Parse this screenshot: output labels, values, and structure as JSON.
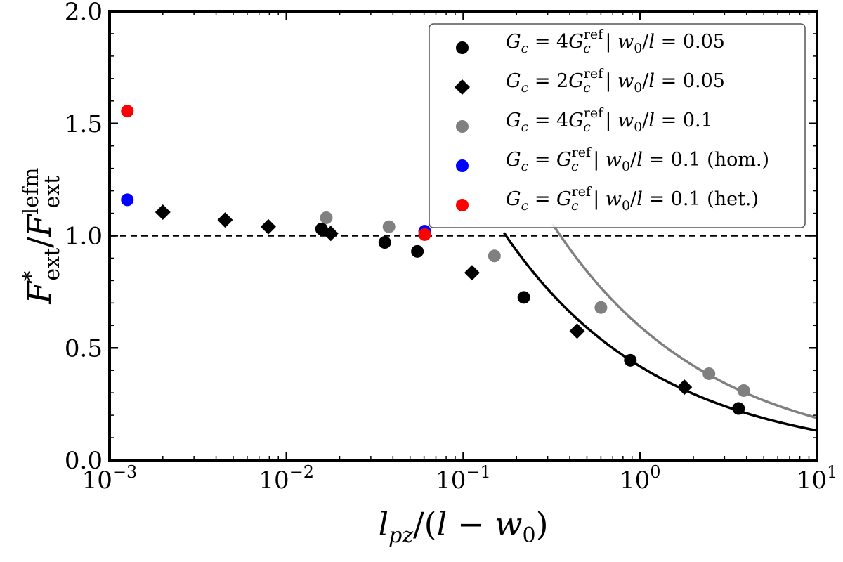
{
  "chart_data": {
    "type": "scatter",
    "x_scale": "log",
    "xlim": [
      0.001,
      10
    ],
    "ylim": [
      0.0,
      2.0
    ],
    "x_ticks": [
      {
        "value": 0.001,
        "base": "10",
        "exp": "−3"
      },
      {
        "value": 0.01,
        "base": "10",
        "exp": "−2"
      },
      {
        "value": 0.1,
        "base": "10",
        "exp": "−1"
      },
      {
        "value": 1,
        "base": "10",
        "exp": "0"
      },
      {
        "value": 10,
        "base": "10",
        "exp": "1"
      }
    ],
    "y_ticks": [
      {
        "value": 0.0,
        "label": "0.0"
      },
      {
        "value": 0.5,
        "label": "0.5"
      },
      {
        "value": 1.0,
        "label": "1.0"
      },
      {
        "value": 1.5,
        "label": "1.5"
      },
      {
        "value": 2.0,
        "label": "2.0"
      }
    ],
    "xlabel": {
      "main": "l",
      "sub": "pz",
      "rest_open": "/(",
      "var": "l",
      "minus": " − ",
      "var2": "w",
      "sub2": "0",
      "rest_close": ")"
    },
    "ylabel": {
      "main": "F",
      "sup1": "*",
      "sub1": "ext",
      "slash": "/",
      "main2": "F",
      "sup2": "lefm",
      "sub2": "ext"
    },
    "reference_line": {
      "y": 1.0,
      "style": "dashed",
      "color": "#000000"
    },
    "series": [
      {
        "name": "Gc = 4Gc^ref | w0/l = 0.05",
        "legend": {
          "coef": "4",
          "w": "0.05",
          "suffix": ""
        },
        "marker": "circle",
        "color": "#000000",
        "points": [
          [
            0.0158,
            1.03
          ],
          [
            0.036,
            0.97
          ],
          [
            0.055,
            0.93
          ],
          [
            0.22,
            0.725
          ],
          [
            0.88,
            0.445
          ],
          [
            3.6,
            0.23
          ]
        ]
      },
      {
        "name": "Gc = 2Gc^ref | w0/l = 0.05",
        "legend": {
          "coef": "2",
          "w": "0.05",
          "suffix": ""
        },
        "marker": "diamond",
        "color": "#000000",
        "points": [
          [
            0.002,
            1.105
          ],
          [
            0.0045,
            1.07
          ],
          [
            0.0079,
            1.04
          ],
          [
            0.0178,
            1.01
          ],
          [
            0.112,
            0.835
          ],
          [
            0.44,
            0.575
          ],
          [
            1.78,
            0.325
          ]
        ]
      },
      {
        "name": "Gc = 4Gc^ref | w0/l = 0.1",
        "legend": {
          "coef": "4",
          "w": "0.1",
          "suffix": ""
        },
        "marker": "circle",
        "color": "#808080",
        "points": [
          [
            0.0168,
            1.08
          ],
          [
            0.038,
            1.04
          ],
          [
            0.15,
            0.91
          ],
          [
            0.6,
            0.68
          ],
          [
            2.45,
            0.385
          ],
          [
            3.85,
            0.31
          ]
        ]
      },
      {
        "name": "Gc = Gc^ref | w0/l = 0.1 (hom.)",
        "legend": {
          "coef": "",
          "w": "0.1",
          "suffix": " (hom.)"
        },
        "marker": "circle",
        "color": "#0000ff",
        "points": [
          [
            0.00126,
            1.16
          ],
          [
            0.0605,
            1.02
          ]
        ]
      },
      {
        "name": "Gc = Gc^ref | w0/l = 0.1 (het.)",
        "legend": {
          "coef": "",
          "w": "0.1",
          "suffix": " (het.)"
        },
        "marker": "circle",
        "color": "#ff0000",
        "points": [
          [
            0.00126,
            1.555
          ],
          [
            0.0605,
            1.005
          ]
        ]
      }
    ],
    "fit_curves": [
      {
        "color": "#000000",
        "amplitude": 0.445,
        "at_x": 0.88,
        "x_start": 0.17,
        "x_end": 10
      },
      {
        "color": "#808080",
        "amplitude": 0.595,
        "at_x": 1.0,
        "x_start": 0.32,
        "x_end": 10
      }
    ],
    "legend_position": "top-right"
  }
}
